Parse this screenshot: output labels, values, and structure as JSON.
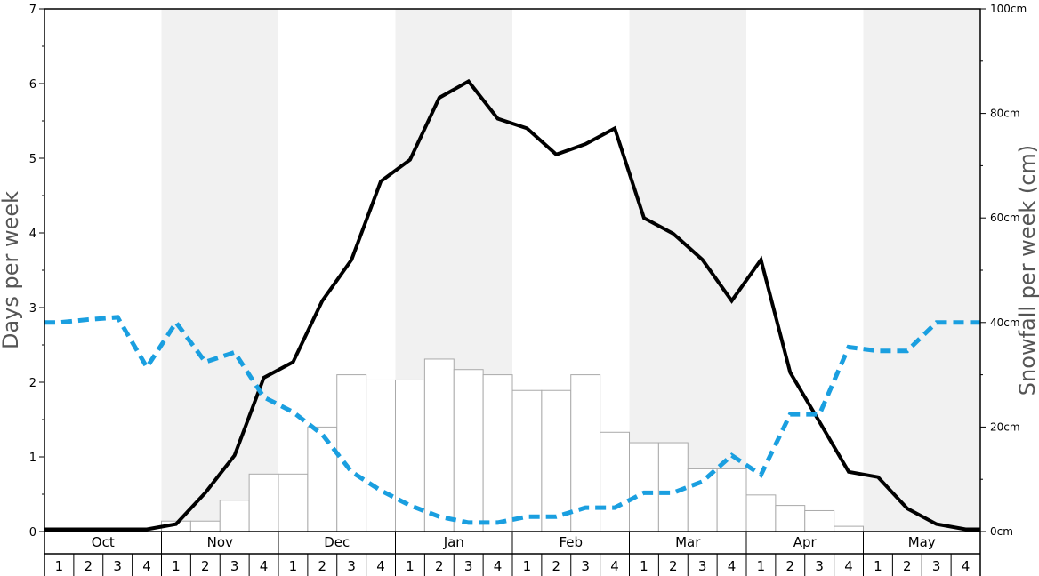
{
  "chart_data": {
    "type": "bar",
    "y_left_label": "Days per week",
    "y_right_label": "Snowfall per week (cm)",
    "y_left_range": [
      0,
      7
    ],
    "y_left_ticks": [
      0,
      1,
      2,
      3,
      4,
      5,
      6,
      7
    ],
    "y_right_range": [
      0,
      100
    ],
    "y_right_ticks": [
      "0cm",
      "20cm",
      "40cm",
      "60cm",
      "80cm",
      "100cm"
    ],
    "y_right_tick_values": [
      0,
      20,
      40,
      60,
      80,
      100
    ],
    "months": [
      "Oct",
      "Nov",
      "Dec",
      "Jan",
      "Feb",
      "Mar",
      "Apr",
      "May"
    ],
    "week_labels": [
      "1",
      "2",
      "3",
      "4"
    ],
    "shaded_months": [
      "Nov",
      "Jan",
      "Mar",
      "May"
    ],
    "series": [
      {
        "kind": "bar",
        "axis": "right",
        "color": "#ffffff",
        "values": [
          0,
          0,
          0,
          0,
          2,
          2,
          6,
          11,
          11,
          20,
          30,
          29,
          29,
          33,
          31,
          30,
          27,
          27,
          30,
          19,
          17,
          17,
          12,
          12,
          7,
          5,
          4,
          1,
          0,
          0,
          0,
          0
        ]
      },
      {
        "kind": "line",
        "axis": "left",
        "color": "#000000",
        "style": "solid",
        "values": [
          0.03,
          0.03,
          0.03,
          0.03,
          0.1,
          0.52,
          1.02,
          2.06,
          2.27,
          3.09,
          3.64,
          4.69,
          4.98,
          5.81,
          6.03,
          5.53,
          5.4,
          5.05,
          5.19,
          5.4,
          4.2,
          3.99,
          3.64,
          3.09,
          3.64,
          2.13,
          1.47,
          0.8,
          0.73,
          0.31,
          0.1,
          0.03
        ]
      },
      {
        "kind": "line",
        "axis": "left",
        "color": "#1a9fe0",
        "style": "dashed",
        "values": [
          2.8,
          2.84,
          2.87,
          2.2,
          2.8,
          2.27,
          2.4,
          1.8,
          1.6,
          1.3,
          0.8,
          0.55,
          0.35,
          0.2,
          0.12,
          0.12,
          0.2,
          0.2,
          0.32,
          0.32,
          0.52,
          0.52,
          0.67,
          1.02,
          0.76,
          1.57,
          1.57,
          2.47,
          2.42,
          2.42,
          2.8,
          2.8
        ]
      }
    ]
  }
}
